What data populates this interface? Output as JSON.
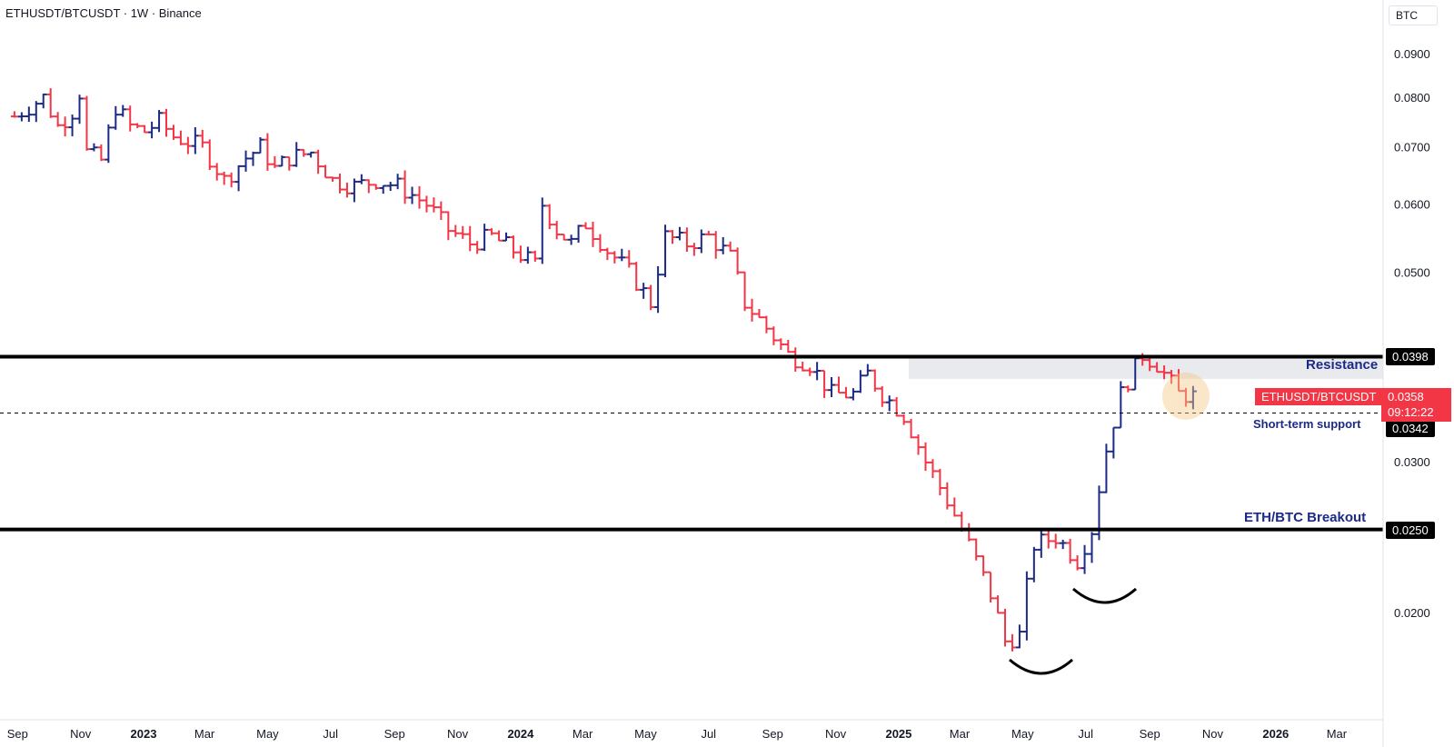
{
  "header": {
    "title": "ETHUSDT/BTCUSDT · 1W · Binance",
    "unit": "BTC"
  },
  "colors": {
    "up": "#1c2a85",
    "down": "#f23645",
    "line": "#000000",
    "zone": "#e8eaee",
    "highlight": "#f5c98a"
  },
  "annotations": {
    "resistance": "Resistance",
    "breakout": "ETH/BTC Breakout",
    "support": "Short-term support",
    "symbol_tag": "ETHUSDT/BTCUSDT",
    "last_price": "0.0358",
    "countdown": "09:12:22",
    "resistance_price": "0.0398",
    "support_price": "0.0342",
    "breakout_price": "0.0250"
  },
  "chart_data": {
    "type": "ohlc",
    "title": "ETHUSDT/BTCUSDT · 1W · Binance",
    "xlabel": "",
    "ylabel": "",
    "y_scale": "log",
    "ylim": [
      0.0162,
      0.099
    ],
    "x_ticks": [
      "Sep",
      "Nov",
      "2023",
      "Mar",
      "May",
      "Jul",
      "Sep",
      "Nov",
      "2024",
      "Mar",
      "May",
      "Jul",
      "Sep",
      "Nov",
      "2025",
      "Mar",
      "May",
      "Jul",
      "Sep",
      "Nov",
      "2026",
      "Mar"
    ],
    "y_ticks": [
      "0.0900",
      "0.0800",
      "0.0700",
      "0.0600",
      "0.0500",
      "0.0300",
      "0.0200"
    ],
    "horizontal_lines": [
      {
        "label": "Resistance",
        "value": 0.0398,
        "style": "solid"
      },
      {
        "label": "ETH/BTC Breakout",
        "value": 0.025,
        "style": "solid"
      },
      {
        "label": "Short-term support",
        "value": 0.0342,
        "style": "dashed"
      }
    ],
    "resistance_zone": [
      0.0375,
      0.0398
    ],
    "last": 0.0358,
    "weekly_close_path": [
      [
        "2022-08-29",
        0.076
      ],
      [
        "2022-09-12",
        0.078
      ],
      [
        "2022-09-26",
        0.08
      ],
      [
        "2022-10-10",
        0.074
      ],
      [
        "2022-10-24",
        0.077
      ],
      [
        "2022-10-31",
        0.081
      ],
      [
        "2022-11-07",
        0.069
      ],
      [
        "2022-11-21",
        0.0675
      ],
      [
        "2022-12-05",
        0.078
      ],
      [
        "2022-12-19",
        0.074
      ],
      [
        "2023-01-02",
        0.073
      ],
      [
        "2023-01-16",
        0.075
      ],
      [
        "2023-01-30",
        0.072
      ],
      [
        "2023-02-13",
        0.071
      ],
      [
        "2023-02-27",
        0.07
      ],
      [
        "2023-03-20",
        0.064
      ],
      [
        "2023-04-10",
        0.068
      ],
      [
        "2023-04-24",
        0.07
      ],
      [
        "2023-05-08",
        0.066
      ],
      [
        "2023-05-22",
        0.068
      ],
      [
        "2023-06-12",
        0.069
      ],
      [
        "2023-07-03",
        0.064
      ],
      [
        "2023-07-24",
        0.063
      ],
      [
        "2023-08-14",
        0.064
      ],
      [
        "2023-09-04",
        0.063
      ],
      [
        "2023-10-02",
        0.06
      ],
      [
        "2023-10-23",
        0.056
      ],
      [
        "2023-11-13",
        0.054
      ],
      [
        "2023-12-04",
        0.055
      ],
      [
        "2023-12-25",
        0.053
      ],
      [
        "2024-01-15",
        0.051
      ],
      [
        "2024-01-22",
        0.06
      ],
      [
        "2024-02-05",
        0.056
      ],
      [
        "2024-02-19",
        0.054
      ],
      [
        "2024-03-04",
        0.057
      ],
      [
        "2024-03-25",
        0.053
      ],
      [
        "2024-04-15",
        0.05
      ],
      [
        "2024-05-06",
        0.046
      ],
      [
        "2024-05-20",
        0.055
      ],
      [
        "2024-06-10",
        0.054
      ],
      [
        "2024-07-01",
        0.055
      ],
      [
        "2024-07-22",
        0.052
      ],
      [
        "2024-08-05",
        0.046
      ],
      [
        "2024-08-26",
        0.043
      ],
      [
        "2024-09-16",
        0.04
      ],
      [
        "2024-10-07",
        0.039
      ],
      [
        "2024-10-28",
        0.036
      ],
      [
        "2024-11-18",
        0.036
      ],
      [
        "2024-12-02",
        0.038
      ],
      [
        "2024-12-16",
        0.036
      ],
      [
        "2025-01-06",
        0.034
      ],
      [
        "2025-01-27",
        0.03
      ],
      [
        "2025-02-17",
        0.027
      ],
      [
        "2025-03-10",
        0.024
      ],
      [
        "2025-03-31",
        0.021
      ],
      [
        "2025-04-14",
        0.0185
      ],
      [
        "2025-04-28",
        0.0188
      ],
      [
        "2025-05-12",
        0.024
      ],
      [
        "2025-06-02",
        0.0245
      ],
      [
        "2025-06-23",
        0.023
      ],
      [
        "2025-07-07",
        0.025
      ],
      [
        "2025-07-21",
        0.031
      ],
      [
        "2025-08-04",
        0.036
      ],
      [
        "2025-08-25",
        0.04
      ],
      [
        "2025-09-08",
        0.039
      ],
      [
        "2025-09-29",
        0.036
      ],
      [
        "2025-10-13",
        0.0358
      ]
    ]
  }
}
